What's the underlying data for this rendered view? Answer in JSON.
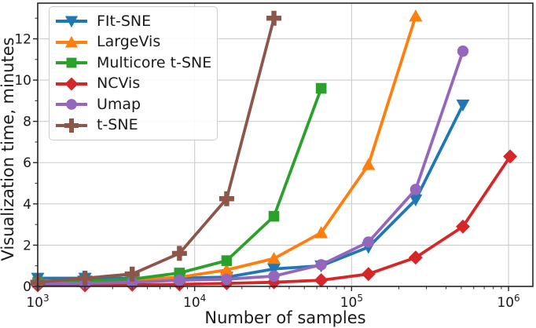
{
  "chart_data": {
    "type": "line",
    "title": "",
    "xlabel": "Number of samples",
    "ylabel": "Visualization time, minutes",
    "x_scale": "log",
    "xlim_log10": [
      3,
      6.155
    ],
    "ylim": [
      0,
      13.73
    ],
    "grid": true,
    "legend_position": "upper left",
    "x_ticks": [
      {
        "value": 1000,
        "label": "10^3"
      },
      {
        "value": 10000,
        "label": "10^4"
      },
      {
        "value": 100000,
        "label": "10^5"
      },
      {
        "value": 1000000,
        "label": "10^6"
      }
    ],
    "y_ticks": [
      0,
      2,
      4,
      6,
      8,
      10,
      12
    ],
    "y_minor_ticks": [
      1,
      3,
      5,
      7,
      9,
      11,
      13
    ],
    "x": [
      1000,
      2000,
      4000,
      8000,
      16000,
      32000,
      64000,
      128000,
      256000,
      512000,
      1024000
    ],
    "series": [
      {
        "name": "FIt-SNE",
        "color": "#1f77b4",
        "marker": "triangle-down",
        "values": [
          0.4,
          0.4,
          0.4,
          0.4,
          0.45,
          0.85,
          1.0,
          1.9,
          4.2,
          8.8,
          null
        ]
      },
      {
        "name": "LargeVis",
        "color": "#ff7f0e",
        "marker": "triangle-up",
        "values": [
          0.25,
          0.25,
          0.3,
          0.45,
          0.8,
          1.35,
          2.6,
          5.9,
          13.1,
          null,
          null
        ]
      },
      {
        "name": "Multicore t-SNE",
        "color": "#2ca02c",
        "marker": "square",
        "values": [
          0.2,
          0.25,
          0.35,
          0.65,
          1.25,
          3.4,
          9.6,
          null,
          null,
          null,
          null
        ]
      },
      {
        "name": "NCVis",
        "color": "#d62728",
        "marker": "diamond",
        "values": [
          0.05,
          0.05,
          0.08,
          0.1,
          0.15,
          0.2,
          0.3,
          0.6,
          1.4,
          2.9,
          6.3
        ]
      },
      {
        "name": "Umap",
        "color": "#9467bd",
        "marker": "circle",
        "values": [
          0.15,
          0.15,
          0.2,
          0.3,
          0.35,
          0.5,
          1.05,
          2.15,
          4.7,
          11.4,
          null
        ]
      },
      {
        "name": "t-SNE",
        "color": "#8c564b",
        "marker": "plus",
        "values": [
          0.2,
          0.4,
          0.6,
          1.6,
          4.25,
          13.0,
          null,
          null,
          null,
          null,
          null
        ]
      }
    ],
    "style": {
      "grid_color": "#cccccc",
      "spine_color": "#262626",
      "text_color": "#1a1a1a",
      "line_width": 3.8
    }
  }
}
